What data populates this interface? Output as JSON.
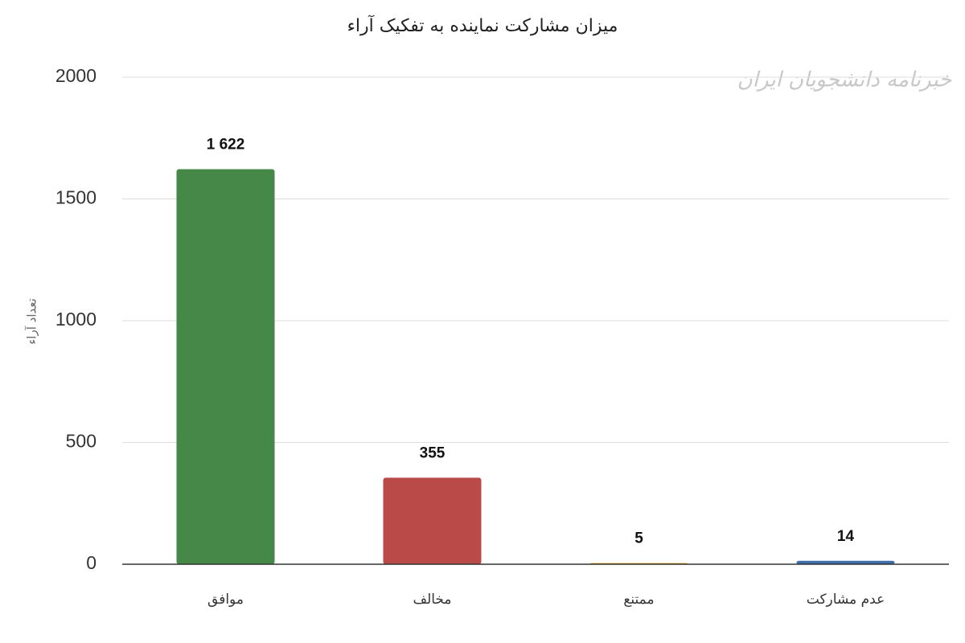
{
  "chart_data": {
    "type": "bar",
    "title": "میزان مشارکت نماینده به تفکیک آراء",
    "watermark": "خبرنامه دانشجویان ایران",
    "ylabel": "تعداد آراء",
    "categories": [
      "موافق",
      "مخالف",
      "ممتنع",
      "عدم مشارکت"
    ],
    "values": [
      1622,
      355,
      5,
      14
    ],
    "value_labels": [
      "1 622",
      "355",
      "5",
      "14"
    ],
    "colors": [
      "#468847",
      "#b94a48",
      "#e0a030",
      "#3d6ea8"
    ],
    "ylim": [
      0,
      2000
    ],
    "yticks": [
      0,
      500,
      1000,
      1500,
      2000
    ],
    "grid": true
  }
}
